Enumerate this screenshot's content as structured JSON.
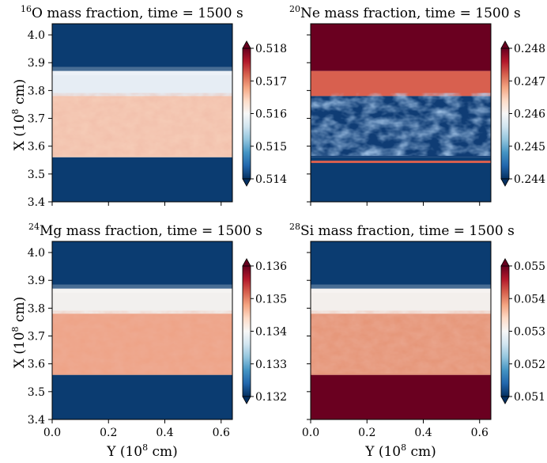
{
  "panels": [
    {
      "id": "o16",
      "title_sup": "16",
      "title_rest": "O mass fraction, time = 1500 s",
      "colorbar_ticks": [
        "0.518",
        "0.517",
        "0.516",
        "0.515",
        "0.514"
      ],
      "colorbar_range": [
        0.514,
        0.518
      ],
      "bands": [
        {
          "from": 3.87,
          "to": 4.04,
          "color": "#0b3c71"
        },
        {
          "from": 3.78,
          "to": 3.87,
          "color": "#e6edf4"
        },
        {
          "from": 3.56,
          "to": 3.78,
          "color": "#f6cdb8"
        },
        {
          "from": 3.4,
          "to": 3.56,
          "color": "#0b3c71"
        }
      ]
    },
    {
      "id": "ne20",
      "title_sup": "20",
      "title_rest": "Ne mass fraction, time = 1500 s",
      "colorbar_ticks": [
        "0.248",
        "0.247",
        "0.246",
        "0.245",
        "0.244"
      ],
      "colorbar_range": [
        0.244,
        0.248
      ],
      "bands": [
        {
          "from": 3.87,
          "to": 4.04,
          "color": "#6a0020"
        },
        {
          "from": 3.78,
          "to": 3.87,
          "color": "#d8604f"
        },
        {
          "from": 3.56,
          "to": 3.78,
          "color": "#0f3c74"
        },
        {
          "from": 3.4,
          "to": 3.56,
          "color": "#0b3c71"
        }
      ]
    },
    {
      "id": "mg24",
      "title_sup": "24",
      "title_rest": "Mg mass fraction, time = 1500 s",
      "colorbar_ticks": [
        "0.136",
        "0.135",
        "0.134",
        "0.133",
        "0.132"
      ],
      "colorbar_range": [
        0.132,
        0.136
      ],
      "bands": [
        {
          "from": 3.87,
          "to": 4.04,
          "color": "#0b3c71"
        },
        {
          "from": 3.78,
          "to": 3.87,
          "color": "#f2f0ee"
        },
        {
          "from": 3.56,
          "to": 3.78,
          "color": "#eea285"
        },
        {
          "from": 3.4,
          "to": 3.56,
          "color": "#0b3c71"
        }
      ]
    },
    {
      "id": "si28",
      "title_sup": "28",
      "title_rest": "Si mass fraction, time = 1500 s",
      "colorbar_ticks": [
        "0.055",
        "0.054",
        "0.053",
        "0.052",
        "0.051"
      ],
      "colorbar_range": [
        0.051,
        0.055
      ],
      "bands": [
        {
          "from": 3.87,
          "to": 4.04,
          "color": "#0b3c71"
        },
        {
          "from": 3.78,
          "to": 3.87,
          "color": "#f3efec"
        },
        {
          "from": 3.56,
          "to": 3.78,
          "color": "#e59476"
        },
        {
          "from": 3.4,
          "to": 3.56,
          "color": "#6a0020"
        }
      ]
    }
  ],
  "y_axis": {
    "label_pre": "X (10",
    "label_sup": "8",
    "label_post": " cm)",
    "ticks": [
      "4.0",
      "3.9",
      "3.8",
      "3.7",
      "3.6",
      "3.5",
      "3.4"
    ],
    "tick_values": [
      4.0,
      3.9,
      3.8,
      3.7,
      3.6,
      3.5,
      3.4
    ],
    "range": [
      3.4,
      4.04
    ]
  },
  "x_axis": {
    "label_pre": "Y (10",
    "label_sup": "8",
    "label_post": " cm)",
    "ticks": [
      "0.0",
      "0.2",
      "0.4",
      "0.6"
    ],
    "tick_values": [
      0.0,
      0.2,
      0.4,
      0.6
    ],
    "range": [
      0.0,
      0.64
    ]
  },
  "colormap": [
    "#053061",
    "#2166ac",
    "#4393c3",
    "#92c5de",
    "#d1e5f0",
    "#f7f7f7",
    "#fddbc7",
    "#f4a582",
    "#d6604d",
    "#b2182b",
    "#67001f"
  ]
}
